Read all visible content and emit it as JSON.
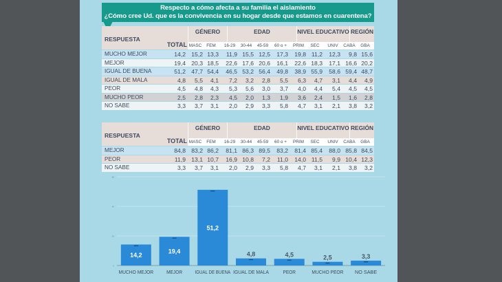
{
  "header": {
    "line1": "Respecto a cómo afecta a su familia el aislamiento",
    "line2": "¿Cómo cree Ud. que es la convivencia en su hogar desde que estamos en cuarentena?"
  },
  "columns": {
    "respuesta": "RESPUESTA",
    "total": "TOTAL",
    "groups": [
      "GÉNERO",
      "EDAD",
      "NIVEL EDUCATIVO",
      "REGIÓN"
    ],
    "sub": [
      "MASC",
      "FEM",
      "16-29",
      "30-44",
      "45-59",
      "60 o +",
      "PRIM",
      "SEC",
      "UNIV",
      "CABA",
      "GBA"
    ]
  },
  "table1": {
    "rows": [
      {
        "label": "MUCHO MEJOR",
        "values": [
          "14,2",
          "15,2",
          "13,3",
          "11,9",
          "15,5",
          "12,5",
          "17,3",
          "19,8",
          "11,2",
          "12,3",
          "9,8",
          "15,6"
        ]
      },
      {
        "label": "MEJOR",
        "values": [
          "19,4",
          "20,3",
          "18,5",
          "22,6",
          "17,6",
          "20,6",
          "16,1",
          "22,6",
          "18,3",
          "17,1",
          "16,6",
          "20,2"
        ]
      },
      {
        "label": "IGUAL DE BUENA",
        "values": [
          "51,2",
          "47,7",
          "54,4",
          "46,5",
          "53,2",
          "56,4",
          "49,8",
          "38,9",
          "55,9",
          "58,6",
          "59,4",
          "48,7"
        ]
      },
      {
        "label": "IGUAL DE MALA",
        "values": [
          "4,8",
          "5,5",
          "4,1",
          "7,2",
          "3,2",
          "2,8",
          "5,5",
          "6,3",
          "4,7",
          "3,1",
          "4,4",
          "4,9"
        ]
      },
      {
        "label": "PEOR",
        "values": [
          "4,5",
          "4,8",
          "4,3",
          "5,3",
          "5,6",
          "3,0",
          "3,7",
          "4,0",
          "4,4",
          "5,4",
          "4,5",
          "4,5"
        ]
      },
      {
        "label": "MUCHO PEOR",
        "values": [
          "2,5",
          "2,8",
          "2,3",
          "4,5",
          "2,0",
          "1,3",
          "1,9",
          "3,6",
          "2,4",
          "1,5",
          "1,6",
          "2,8"
        ]
      },
      {
        "label": "NO SABE",
        "values": [
          "3,3",
          "3,7",
          "3,1",
          "2,0",
          "2,9",
          "3,3",
          "5,8",
          "4,7",
          "3,1",
          "2,1",
          "3,8",
          "3,2"
        ]
      }
    ]
  },
  "table2": {
    "rows": [
      {
        "label": "MEJOR",
        "values": [
          "84,8",
          "83,2",
          "86,2",
          "81,1",
          "86,3",
          "89,5",
          "83,2",
          "81,4",
          "85,4",
          "88,0",
          "85,8",
          "84,5"
        ]
      },
      {
        "label": "PEOR",
        "values": [
          "11,9",
          "13,1",
          "10,7",
          "16,9",
          "10,8",
          "7,2",
          "11,0",
          "14,0",
          "11,5",
          "9,9",
          "10,4",
          "12,3"
        ]
      },
      {
        "label": "NO SABE",
        "values": [
          "3,3",
          "3,7",
          "3,1",
          "2,0",
          "2,9",
          "3,3",
          "5,8",
          "4,7",
          "3,1",
          "2,1",
          "3,8",
          "3,2"
        ]
      }
    ]
  },
  "chart_data": {
    "type": "bar",
    "title": "",
    "xlabel": "",
    "ylabel": "",
    "categories": [
      "MUCHO MEJOR",
      "MEJOR",
      "IGUAL DE BUENA",
      "IGUAL DE MALA",
      "PEOR",
      "MUCHO PEOR",
      "NO SABE"
    ],
    "values": [
      14.2,
      19.4,
      51.2,
      4.8,
      4.5,
      2.5,
      3.3
    ],
    "labels": [
      "14,2",
      "19,4",
      "51,2",
      "4,8",
      "4,5",
      "2,5",
      "3,3"
    ],
    "ylim": [
      0,
      60
    ],
    "yticks": [
      0,
      20,
      40,
      60
    ],
    "grid": true,
    "bar_color": "#2b8ad8"
  },
  "colors": {
    "panel": "#a9d9e6",
    "header": "#159a8c",
    "row_blue": "#c7e3f2",
    "row_pink": "#e6dcd8",
    "row_gray": "#d2d2d4",
    "row_white": "#eef3f6"
  }
}
